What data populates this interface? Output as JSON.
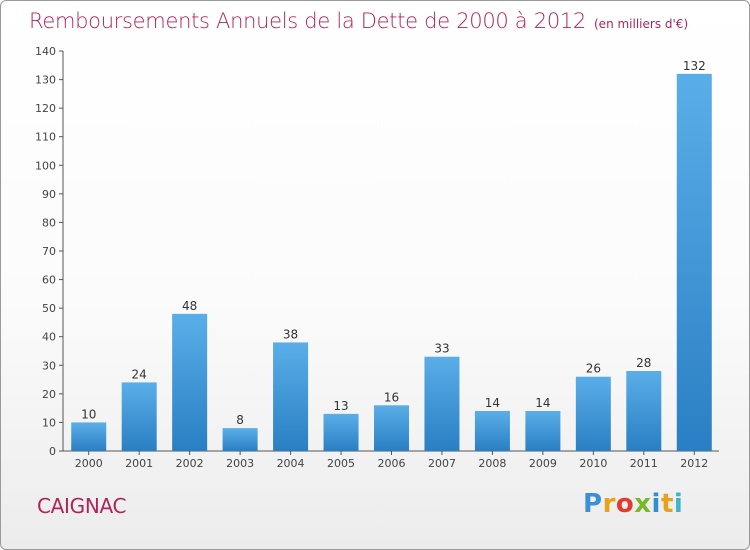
{
  "title": "Remboursements Annuels de la Dette de 2000 à 2012",
  "unit": "(en milliers d'€)",
  "commune": "CAIGNAC",
  "logo": {
    "letters": [
      "P",
      "r",
      "o",
      "x",
      "i",
      "t",
      "i"
    ],
    "colors": [
      "#3a8fd6",
      "#e6a21b",
      "#e03c2e",
      "#7ab82a",
      "#2f8fd0",
      "#e6a21b",
      "#3fb4c8"
    ]
  },
  "chart_data": {
    "type": "bar",
    "title": "Remboursements Annuels de la Dette de 2000 à 2012",
    "categories": [
      "2000",
      "2001",
      "2002",
      "2003",
      "2004",
      "2005",
      "2006",
      "2007",
      "2008",
      "2009",
      "2010",
      "2011",
      "2012"
    ],
    "values": [
      10,
      24,
      48,
      8,
      38,
      13,
      16,
      33,
      14,
      14,
      26,
      28,
      132
    ],
    "ylim": [
      0,
      140
    ],
    "yticks": [
      0,
      10,
      20,
      30,
      40,
      50,
      60,
      70,
      80,
      90,
      100,
      110,
      120,
      130,
      140
    ],
    "grid": false,
    "bar_color": "#3a93d6"
  }
}
